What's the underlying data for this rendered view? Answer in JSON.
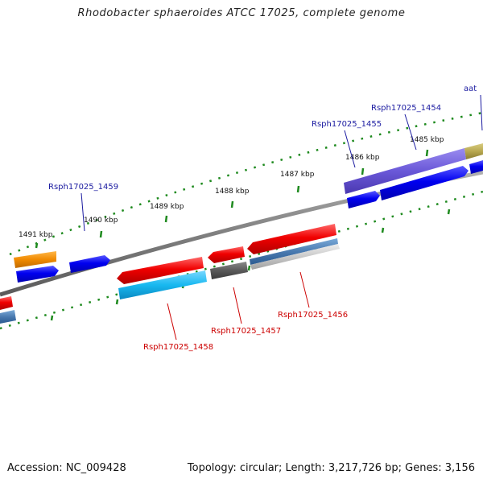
{
  "header": {
    "title": "Rhodobacter sphaeroides ATCC 17025, complete genome"
  },
  "footer": {
    "accession": "Accession: NC_009428",
    "topology": "Topology: circular; Length: 3,217,726 bp; Genes: 3,156"
  },
  "ruler_labels": [
    {
      "id": "1491",
      "text": "1491 kbp"
    },
    {
      "id": "1490",
      "text": "1490 kbp"
    },
    {
      "id": "1489",
      "text": "1489 kbp"
    },
    {
      "id": "1488",
      "text": "1488 kbp"
    },
    {
      "id": "1487",
      "text": "1487 kbp"
    },
    {
      "id": "1486",
      "text": "1486 kbp"
    },
    {
      "id": "1485",
      "text": "1485 kbp"
    }
  ],
  "gene_labels": [
    {
      "id": "aat",
      "text": "aat",
      "strand": "forward"
    },
    {
      "id": "1454",
      "text": "Rsph17025_1454",
      "strand": "forward"
    },
    {
      "id": "1455",
      "text": "Rsph17025_1455",
      "strand": "forward"
    },
    {
      "id": "1459",
      "text": "Rsph17025_1459",
      "strand": "forward"
    },
    {
      "id": "1456",
      "text": "Rsph17025_1456",
      "strand": "reverse"
    },
    {
      "id": "1457",
      "text": "Rsph17025_1457",
      "strand": "reverse"
    },
    {
      "id": "1458",
      "text": "Rsph17025_1458",
      "strand": "reverse"
    }
  ],
  "colors": {
    "forward_label": "#1a1aa0",
    "reverse_label": "#cc0000",
    "ruler_tick": "#1e8a1e",
    "backbone": "#808080",
    "cds_forward": "#0000ee",
    "cds_reverse": "#ee0000"
  }
}
